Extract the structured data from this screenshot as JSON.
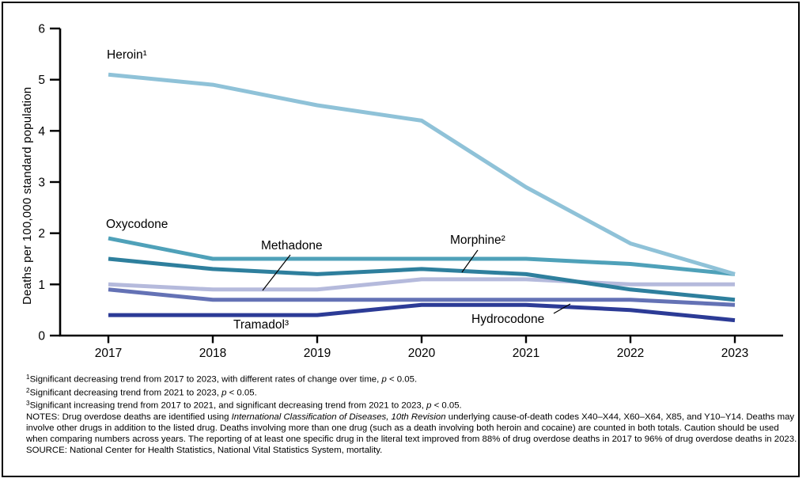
{
  "chart_data": {
    "type": "line",
    "x": [
      2017,
      2018,
      2019,
      2020,
      2021,
      2022,
      2023
    ],
    "series": [
      {
        "name": "Heroin¹",
        "color": "#8FC2D8",
        "values": [
          5.1,
          4.9,
          4.5,
          4.2,
          2.9,
          1.8,
          1.2
        ]
      },
      {
        "name": "Oxycodone",
        "color": "#4FA1B9",
        "values": [
          1.9,
          1.5,
          1.5,
          1.5,
          1.5,
          1.4,
          1.2
        ]
      },
      {
        "name": "Morphine²",
        "color": "#2E7F9D",
        "values": [
          1.5,
          1.3,
          1.2,
          1.3,
          1.2,
          0.9,
          0.7
        ]
      },
      {
        "name": "Methadone",
        "color": "#B5BADC",
        "values": [
          1.0,
          0.9,
          0.9,
          1.1,
          1.1,
          1.0,
          1.0
        ]
      },
      {
        "name": "Hydrocodone",
        "color": "#6472B5",
        "values": [
          0.9,
          0.7,
          0.7,
          0.7,
          0.7,
          0.7,
          0.6
        ]
      },
      {
        "name": "Tramadol³",
        "color": "#2C3B96",
        "values": [
          0.4,
          0.4,
          0.4,
          0.6,
          0.6,
          0.5,
          0.3
        ]
      }
    ],
    "title": "",
    "xlabel": "",
    "ylabel": "Deaths per 100,000 standard population",
    "ylim": [
      0,
      6
    ],
    "yticks": [
      0,
      1,
      2,
      3,
      4,
      5,
      6
    ],
    "grid": false,
    "legend_position": "inline-labels",
    "axis_color": "#000000"
  },
  "footnotes": [
    {
      "segments": [
        {
          "text": "1",
          "sup": true
        },
        {
          "text": "Significant decreasing trend from 2017 to 2023, with different rates of change over time, "
        },
        {
          "text": "p",
          "italic": true
        },
        {
          "text": " < 0.05."
        }
      ]
    },
    {
      "segments": [
        {
          "text": "2",
          "sup": true
        },
        {
          "text": "Significant decreasing trend from 2021 to 2023, "
        },
        {
          "text": "p",
          "italic": true
        },
        {
          "text": " < 0.05."
        }
      ]
    },
    {
      "segments": [
        {
          "text": "3",
          "sup": true
        },
        {
          "text": "Significant increasing trend from 2017 to 2021, and significant decreasing trend from 2021 to 2023, "
        },
        {
          "text": "p",
          "italic": true
        },
        {
          "text": " < 0.05."
        }
      ]
    }
  ],
  "notes": {
    "segments": [
      {
        "text": "NOTES: Drug overdose deaths are identified using "
      },
      {
        "text": "International Classification of Diseases, 10th Revision",
        "italic": true
      },
      {
        "text": " underlying cause-of-death codes X40–X44, X60–X64, X85, and Y10–Y14. Deaths may involve other drugs in addition to the listed drug. Deaths involving more than one drug (such as a death involving both heroin and cocaine) are counted in both totals. Caution should be used when comparing numbers across years. The reporting of at least one specific drug in the literal text improved from 88% of drug overdose deaths in 2017 to 96% of drug overdose deaths in 2023."
      }
    ]
  },
  "source": "SOURCE: National Center for Health Statistics, National Vital Statistics System, mortality."
}
